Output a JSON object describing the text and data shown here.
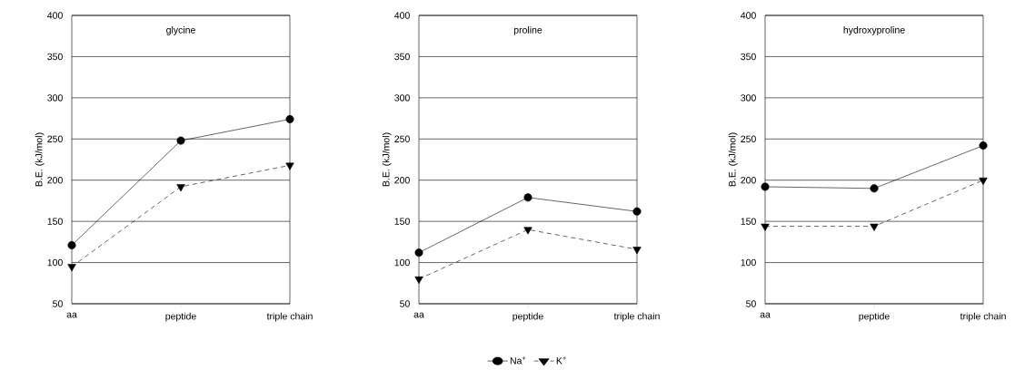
{
  "chart_data": [
    {
      "type": "line",
      "title": "glycine",
      "ylabel": "B.E. (kJ/mol)",
      "categories": [
        "aa",
        "peptide",
        "triple chain"
      ],
      "ylim": [
        50,
        400
      ],
      "yticks": [
        50,
        100,
        150,
        200,
        250,
        300,
        350,
        400
      ],
      "grid": "y",
      "legend": false,
      "series": [
        {
          "color": "#000000",
          "marker": "circle",
          "line_style": "solid",
          "values": [
            121,
            248,
            274
          ]
        },
        {
          "color": "#000000",
          "marker": "triangle",
          "line_style": "dashed",
          "values": [
            95,
            192,
            218
          ]
        }
      ]
    },
    {
      "type": "line",
      "title": "proline",
      "ylabel": "B.E. (kJ/mol)",
      "categories": [
        "aa",
        "peptide",
        "triple chain"
      ],
      "ylim": [
        50,
        400
      ],
      "yticks": [
        50,
        100,
        150,
        200,
        250,
        300,
        350,
        400
      ],
      "grid": "y",
      "legend": "bottom",
      "series": [
        {
          "name": "Na$^{+}$",
          "color": "#000000",
          "marker": "circle",
          "line_style": "solid",
          "values": [
            112,
            179,
            162
          ]
        },
        {
          "name": "K$^{+}$",
          "color": "#000000",
          "marker": "triangle",
          "line_style": "dashed",
          "values": [
            80,
            140,
            116
          ]
        }
      ]
    },
    {
      "type": "line",
      "title": "hydroxyproline",
      "ylabel": "B.E. (kJ/mol)",
      "categories": [
        "aa",
        "peptide",
        "triple chain"
      ],
      "ylim": [
        50,
        400
      ],
      "yticks": [
        50,
        100,
        150,
        200,
        250,
        300,
        350,
        400
      ],
      "grid": "y",
      "legend": false,
      "series": [
        {
          "color": "#000000",
          "marker": "circle",
          "line_style": "solid",
          "values": [
            192,
            190,
            242
          ]
        },
        {
          "color": "#000000",
          "marker": "triangle",
          "line_style": "dashed",
          "values": [
            144,
            144,
            200
          ]
        }
      ]
    }
  ]
}
